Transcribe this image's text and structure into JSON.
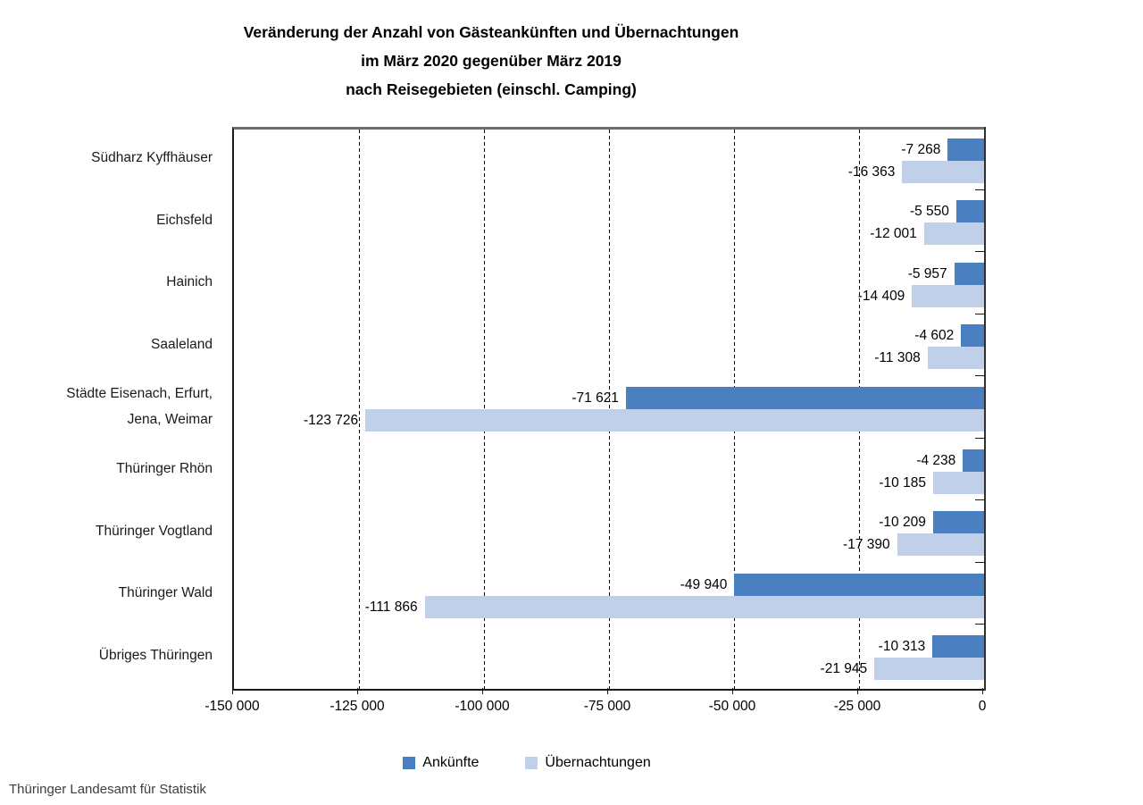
{
  "title": {
    "line1": "Veränderung der Anzahl von Gästeankünften und Übernachtungen",
    "line2": "im März 2020 gegenüber März 2019",
    "line3": "nach Reisegebieten (einschl. Camping)"
  },
  "footer": "Thüringer Landesamt für Statistik",
  "colors": {
    "ankuenfte": "#4a80c2",
    "uebernachtungen": "#bfd0e8"
  },
  "chart_data": {
    "type": "bar",
    "orientation": "horizontal",
    "title": "Veränderung der Anzahl von Gästeankünften und Übernachtungen im März 2020 gegenüber März 2019 nach Reisegebieten (einschl. Camping)",
    "categories": [
      "Südharz Kyffhäuser",
      "Eichsfeld",
      "Hainich",
      "Saaleland",
      "Städte Eisenach, Erfurt,\nJena, Weimar",
      "Thüringer Rhön",
      "Thüringer Vogtland",
      "Thüringer Wald",
      "Übriges Thüringen"
    ],
    "series": [
      {
        "name": "Ankünfte",
        "color": "#4a80c2",
        "values": [
          -7268,
          -5550,
          -5957,
          -4602,
          -71621,
          -4238,
          -10209,
          -49940,
          -10313
        ],
        "labels": [
          "-7 268",
          "-5 550",
          "-5 957",
          "-4 602",
          "-71 621",
          "-4 238",
          "-10 209",
          "-49 940",
          "-10 313"
        ]
      },
      {
        "name": "Übernachtungen",
        "color": "#bfd0e8",
        "values": [
          -16363,
          -12001,
          -14409,
          -11308,
          -123726,
          -10185,
          -17390,
          -111866,
          -21945
        ],
        "labels": [
          "-16 363",
          "-12 001",
          "-14 409",
          "-11 308",
          "-123 726",
          "-10 185",
          "-17 390",
          "-111 866",
          "-21 945"
        ]
      }
    ],
    "xlim": [
      -150000,
      0
    ],
    "x_ticks": [
      {
        "value": -150000,
        "label": "-150 000"
      },
      {
        "value": -125000,
        "label": "-125 000"
      },
      {
        "value": -100000,
        "label": "-100 000"
      },
      {
        "value": -75000,
        "label": "-75 000"
      },
      {
        "value": -50000,
        "label": "-50 000"
      },
      {
        "value": -25000,
        "label": "-25 000"
      },
      {
        "value": 0,
        "label": "0"
      }
    ],
    "grid": "dashed-vertical",
    "legend_position": "bottom-center"
  }
}
